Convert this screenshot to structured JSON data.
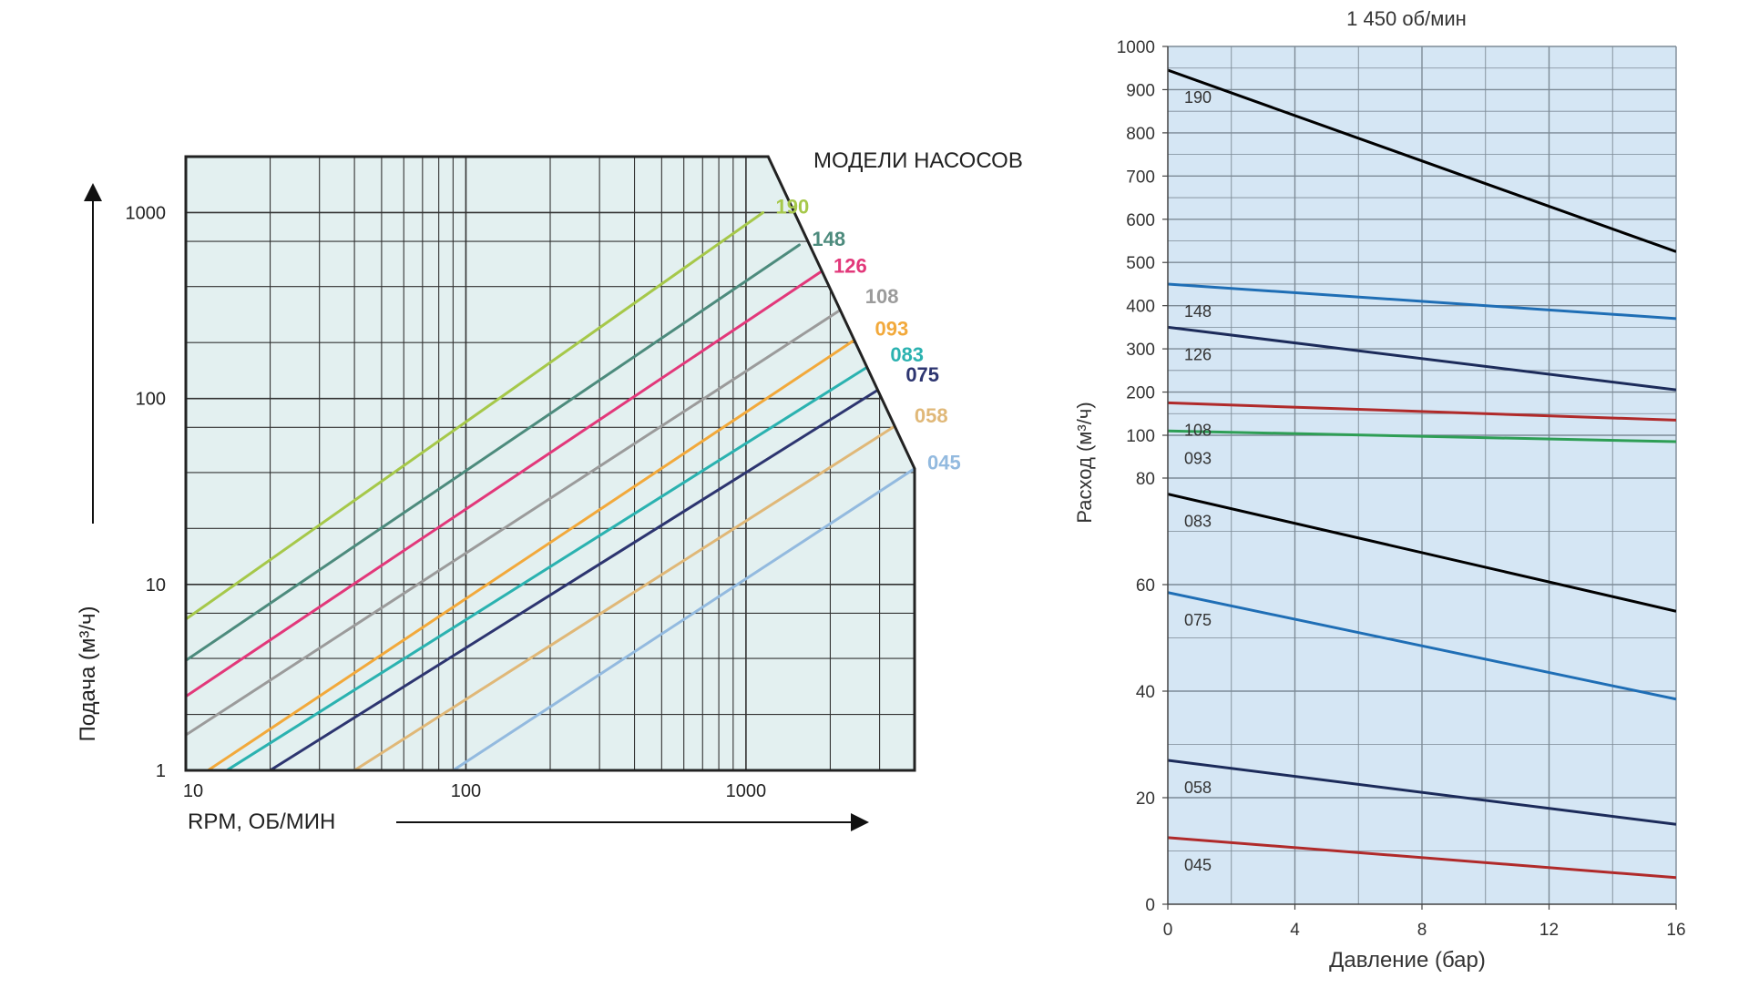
{
  "chart_data": [
    {
      "type": "line",
      "title": "",
      "models_header": "МОДЕЛИ НАСОСОВ",
      "xlabel": "RPM, ОБ/МИН",
      "ylabel": "Подача (м³/ч)",
      "xscale": "log",
      "yscale": "log",
      "xlim": [
        10,
        4000
      ],
      "ylim": [
        1,
        2000
      ],
      "xticks": [
        {
          "value": 10,
          "label": "10"
        },
        {
          "value": 100,
          "label": "100"
        },
        {
          "value": 1000,
          "label": "1000"
        }
      ],
      "yticks": [
        {
          "value": 1,
          "label": "1"
        },
        {
          "value": 10,
          "label": "10"
        },
        {
          "value": 100,
          "label": "100"
        },
        {
          "value": 1000,
          "label": "1000"
        }
      ],
      "grid": true,
      "series": [
        {
          "name": "190",
          "color": "#a6c84a",
          "x": [
            10,
            1150
          ],
          "y": [
            6.5,
            1000
          ]
        },
        {
          "name": "148",
          "color": "#4d8b7d",
          "x": [
            10,
            1550
          ],
          "y": [
            3.9,
            670
          ]
        },
        {
          "name": "126",
          "color": "#e2387a",
          "x": [
            10,
            1850
          ],
          "y": [
            2.5,
            480
          ]
        },
        {
          "name": "108",
          "color": "#9b9b9b",
          "x": [
            10,
            2400
          ],
          "y": [
            1.55,
            330
          ]
        },
        {
          "name": "093",
          "color": "#f2a93b",
          "x": [
            12,
            2600
          ],
          "y": [
            1,
            220
          ]
        },
        {
          "name": "083",
          "color": "#2bb2b0",
          "x": [
            14,
            2950
          ],
          "y": [
            1,
            160
          ]
        },
        {
          "name": "075",
          "color": "#2d3570",
          "x": [
            20,
            3350
          ],
          "y": [
            1,
            125
          ]
        },
        {
          "name": "058",
          "color": "#e0b878",
          "x": [
            40,
            3600
          ],
          "y": [
            1,
            75
          ]
        },
        {
          "name": "045",
          "color": "#93badf",
          "x": [
            90,
            4000
          ],
          "y": [
            1,
            42
          ]
        }
      ]
    },
    {
      "type": "line",
      "title": "1 450 об/мин",
      "xlabel": "Давление (бар)",
      "ylabel": "Расход (м³/ч)",
      "xlim": [
        0,
        16
      ],
      "ylim": [
        0,
        1000
      ],
      "xticks": [
        {
          "value": 0,
          "label": "0"
        },
        {
          "value": 4,
          "label": "4"
        },
        {
          "value": 8,
          "label": "8"
        },
        {
          "value": 12,
          "label": "12"
        },
        {
          "value": 16,
          "label": "16"
        }
      ],
      "yticks_note": "piecewise axis: 0–80 linear, 80–100 compressed, 100–1000 linear",
      "yticks": [
        {
          "value": 0,
          "label": "0"
        },
        {
          "value": 20,
          "label": "20"
        },
        {
          "value": 40,
          "label": "40"
        },
        {
          "value": 60,
          "label": "60"
        },
        {
          "value": 80,
          "label": "80"
        },
        {
          "value": 100,
          "label": "100"
        },
        {
          "value": 200,
          "label": "200"
        },
        {
          "value": 300,
          "label": "300"
        },
        {
          "value": 400,
          "label": "400"
        },
        {
          "value": 500,
          "label": "500"
        },
        {
          "value": 600,
          "label": "600"
        },
        {
          "value": 700,
          "label": "700"
        },
        {
          "value": 800,
          "label": "800"
        },
        {
          "value": 900,
          "label": "900"
        },
        {
          "value": 1000,
          "label": "1000"
        }
      ],
      "grid": true,
      "series": [
        {
          "name": "190",
          "color": "#000000",
          "x": [
            0,
            16
          ],
          "y": [
            945,
            525
          ]
        },
        {
          "name": "148",
          "color": "#1f6eb5",
          "x": [
            0,
            16
          ],
          "y": [
            450,
            370
          ]
        },
        {
          "name": "126",
          "color": "#1c2b5a",
          "x": [
            0,
            16
          ],
          "y": [
            350,
            205
          ]
        },
        {
          "name": "108",
          "color": "#b02a2a",
          "x": [
            0,
            16
          ],
          "y": [
            175,
            135
          ]
        },
        {
          "name": "093",
          "color": "#2e9e55",
          "x": [
            0,
            16
          ],
          "y": [
            110,
            97
          ]
        },
        {
          "name": "083",
          "color": "#000000",
          "x": [
            0,
            16
          ],
          "y": [
            77,
            55
          ]
        },
        {
          "name": "075",
          "color": "#1f6eb5",
          "x": [
            0,
            16
          ],
          "y": [
            58.5,
            38.5
          ]
        },
        {
          "name": "058",
          "color": "#1c2b5a",
          "x": [
            0,
            16
          ],
          "y": [
            27,
            15
          ]
        },
        {
          "name": "045",
          "color": "#b02a2a",
          "x": [
            0,
            16
          ],
          "y": [
            12.5,
            5
          ]
        }
      ]
    }
  ]
}
